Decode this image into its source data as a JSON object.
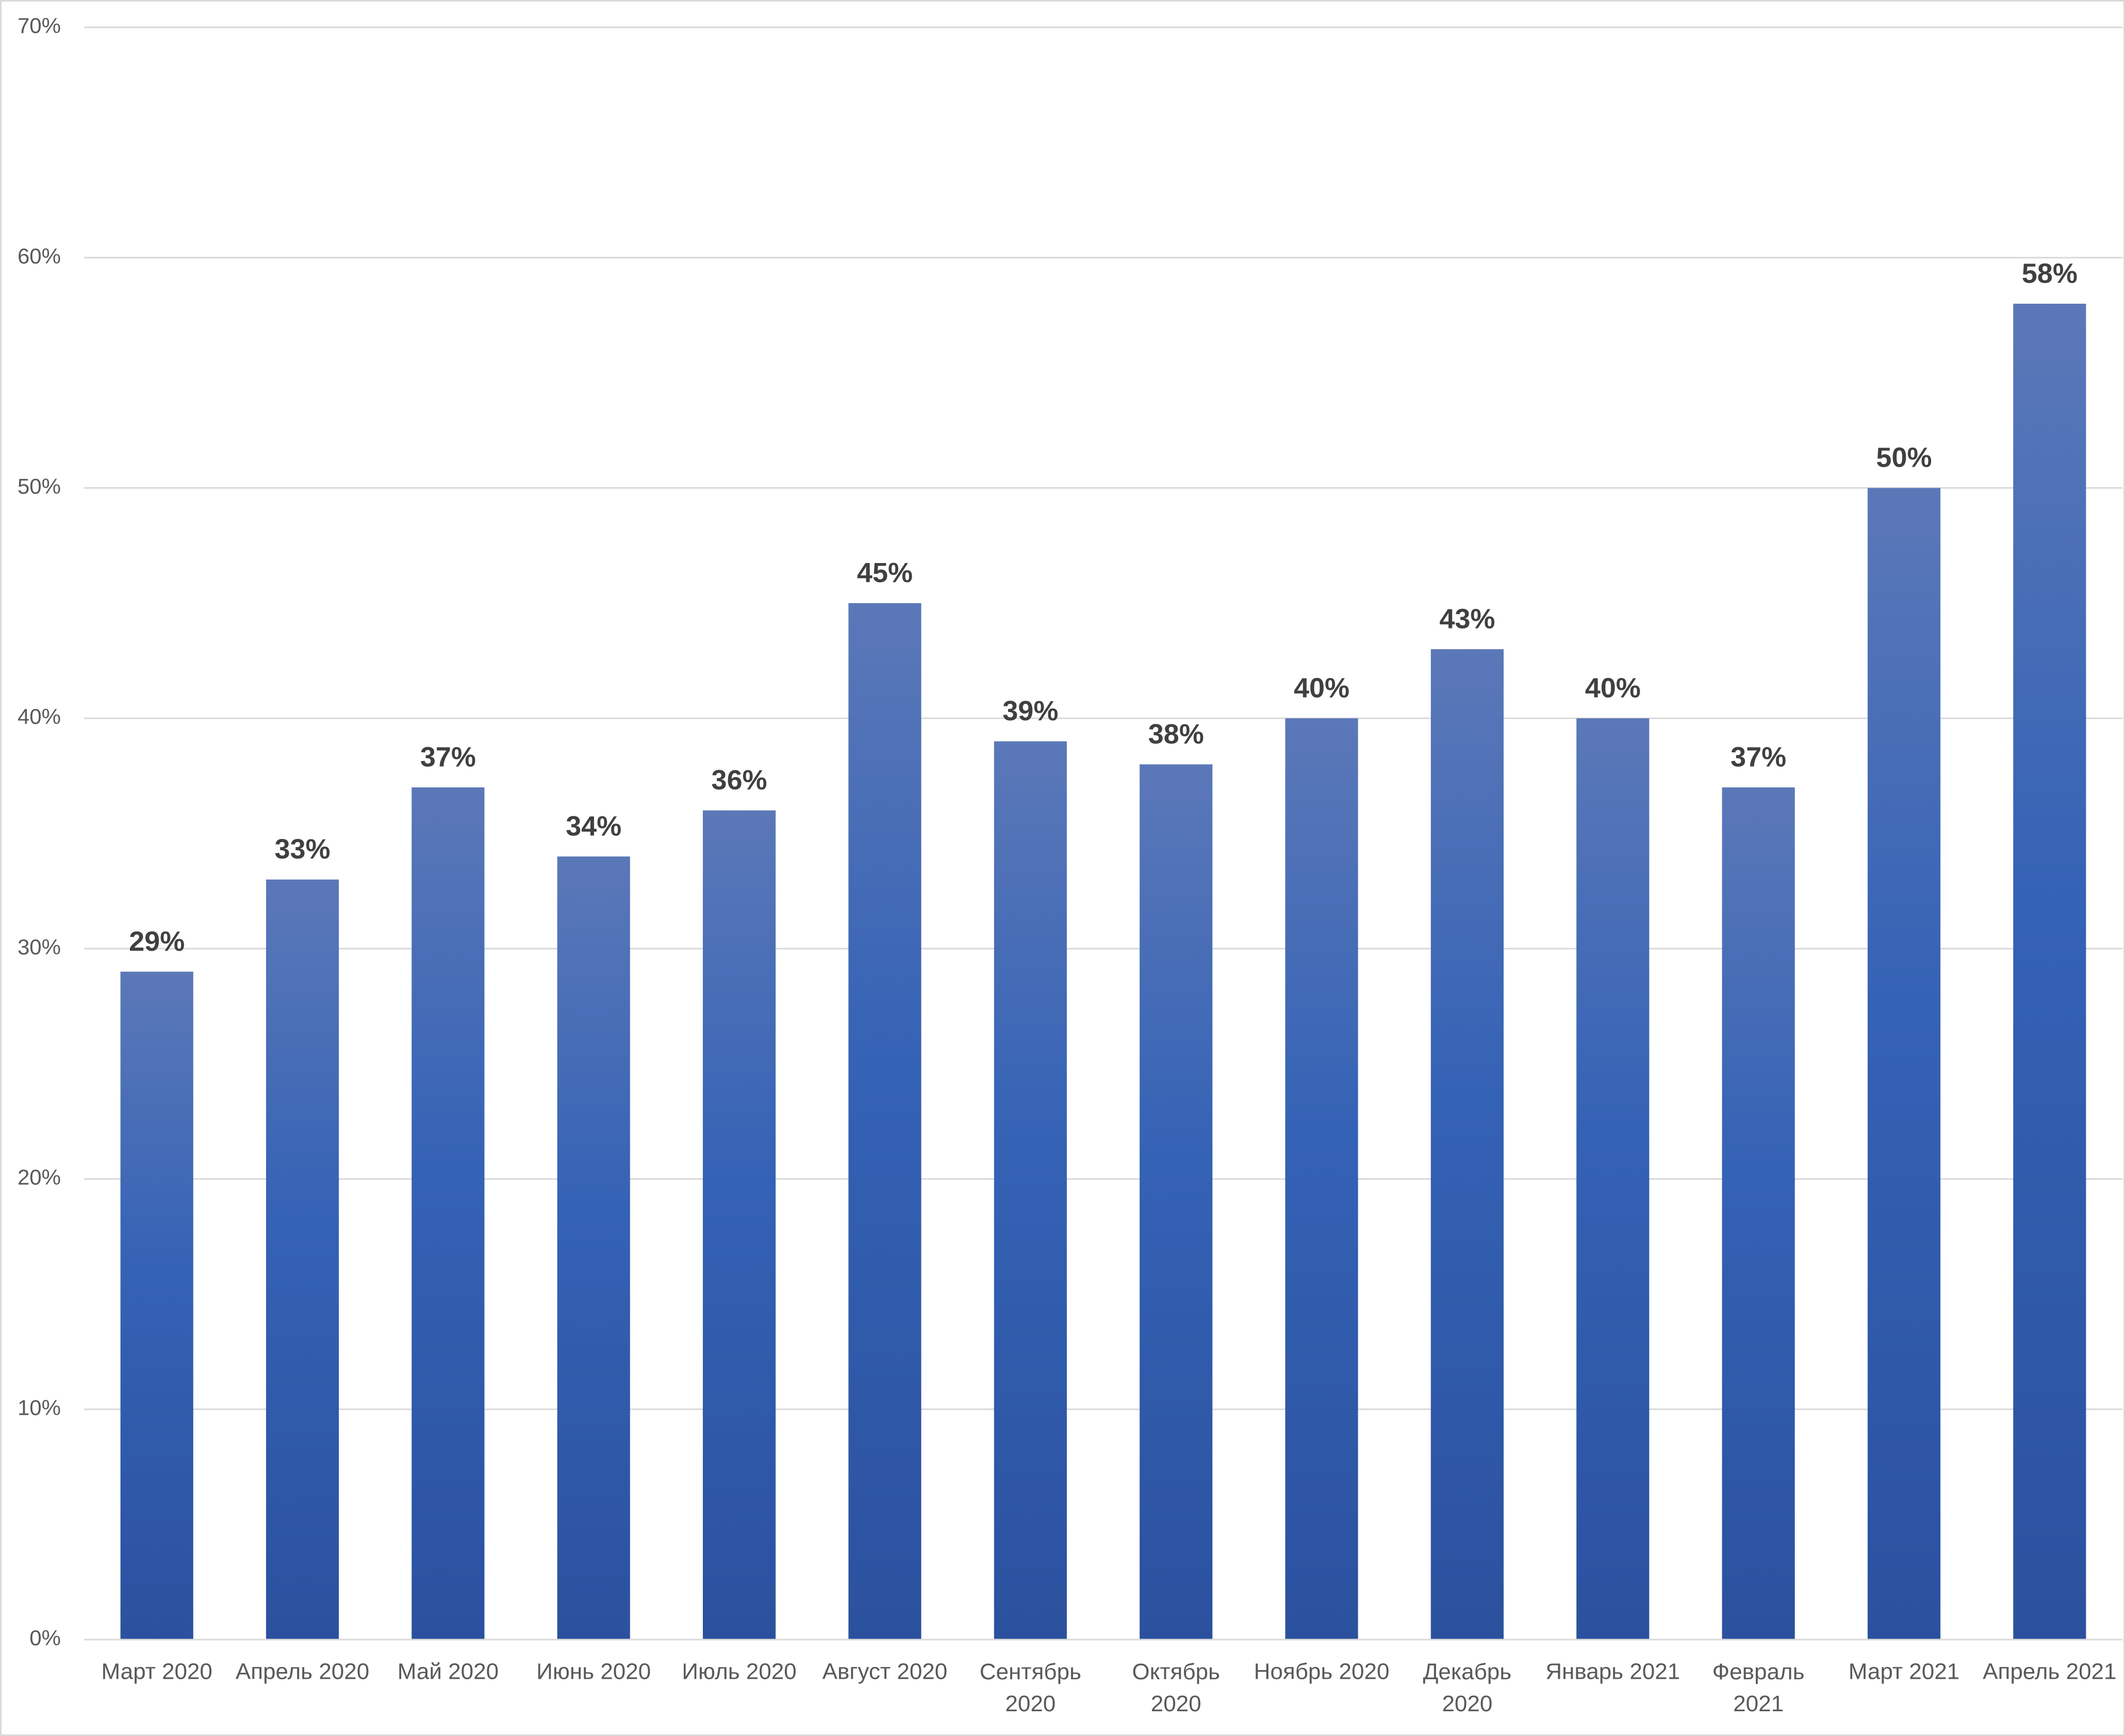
{
  "chart_data": {
    "type": "bar",
    "categories": [
      "Март 2020",
      "Апрель 2020",
      "Май 2020",
      "Июнь 2020",
      "Июль 2020",
      "Август 2020",
      "Сентябрь 2020",
      "Октябрь 2020",
      "Ноябрь 2020",
      "Декабрь 2020",
      "Январь 2021",
      "Февраль 2021",
      "Март 2021",
      "Апрель 2021"
    ],
    "values": [
      29,
      33,
      37,
      34,
      36,
      45,
      39,
      38,
      40,
      43,
      40,
      37,
      50,
      58
    ],
    "value_labels": [
      "29%",
      "33%",
      "37%",
      "34%",
      "36%",
      "45%",
      "39%",
      "38%",
      "40%",
      "43%",
      "40%",
      "37%",
      "50%",
      "58%"
    ],
    "color": "#3462b5",
    "ylim": [
      0,
      70
    ],
    "yticks": [
      {
        "value": 0,
        "label": "0%"
      },
      {
        "value": 10,
        "label": "10%"
      },
      {
        "value": 20,
        "label": "20%"
      },
      {
        "value": 30,
        "label": "30%"
      },
      {
        "value": 40,
        "label": "40%"
      },
      {
        "value": 50,
        "label": "50%"
      },
      {
        "value": 60,
        "label": "60%"
      },
      {
        "value": 70,
        "label": "70%"
      }
    ],
    "grid": true
  }
}
